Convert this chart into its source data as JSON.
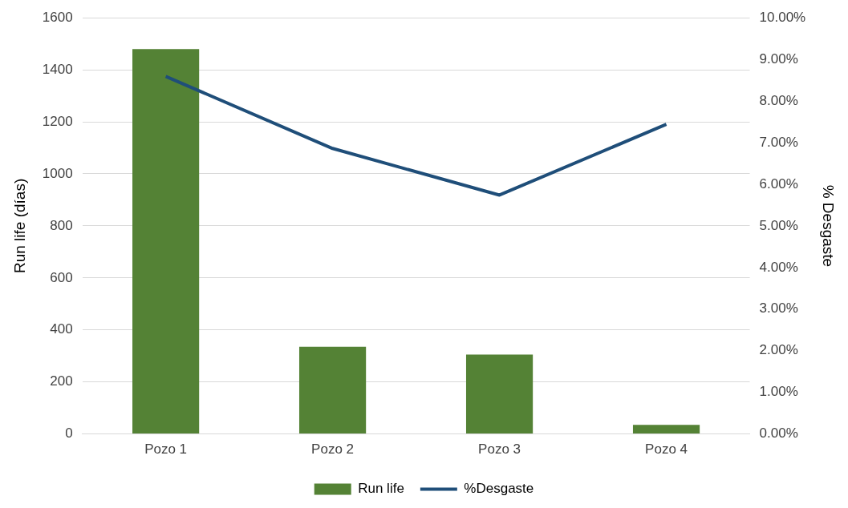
{
  "chart_data": {
    "type": "bar",
    "categories": [
      "Pozo 1",
      "Pozo 2",
      "Pozo 3",
      "Pozo 4"
    ],
    "series": [
      {
        "name": "Run life",
        "color": "#548235",
        "values": [
          1480,
          335,
          305,
          35
        ]
      },
      {
        "name": "%Desgaste",
        "type": "line",
        "axis": "y2",
        "color": "#1f4e79",
        "values": [
          8.59,
          6.86,
          5.74,
          7.44
        ]
      }
    ],
    "ylabel": "Run life (días)",
    "y2label": "% Desgaste",
    "ylim": [
      0,
      1600
    ],
    "yticks": [
      0,
      200,
      400,
      600,
      800,
      1000,
      1200,
      1400,
      1600
    ],
    "y2lim": [
      0,
      10
    ],
    "y2ticks": [
      {
        "value": 0,
        "label": "0.00%"
      },
      {
        "value": 1,
        "label": "1.00%"
      },
      {
        "value": 2,
        "label": "2.00%"
      },
      {
        "value": 3,
        "label": "3.00%"
      },
      {
        "value": 4,
        "label": "4.00%"
      },
      {
        "value": 5,
        "label": "5.00%"
      },
      {
        "value": 6,
        "label": "6.00%"
      },
      {
        "value": 7,
        "label": "7.00%"
      },
      {
        "value": 8,
        "label": "8.00%"
      },
      {
        "value": 9,
        "label": "9.00%"
      },
      {
        "value": 10,
        "label": "10.00%"
      }
    ],
    "grid": "y",
    "legend": "bottom",
    "marker": "none"
  }
}
